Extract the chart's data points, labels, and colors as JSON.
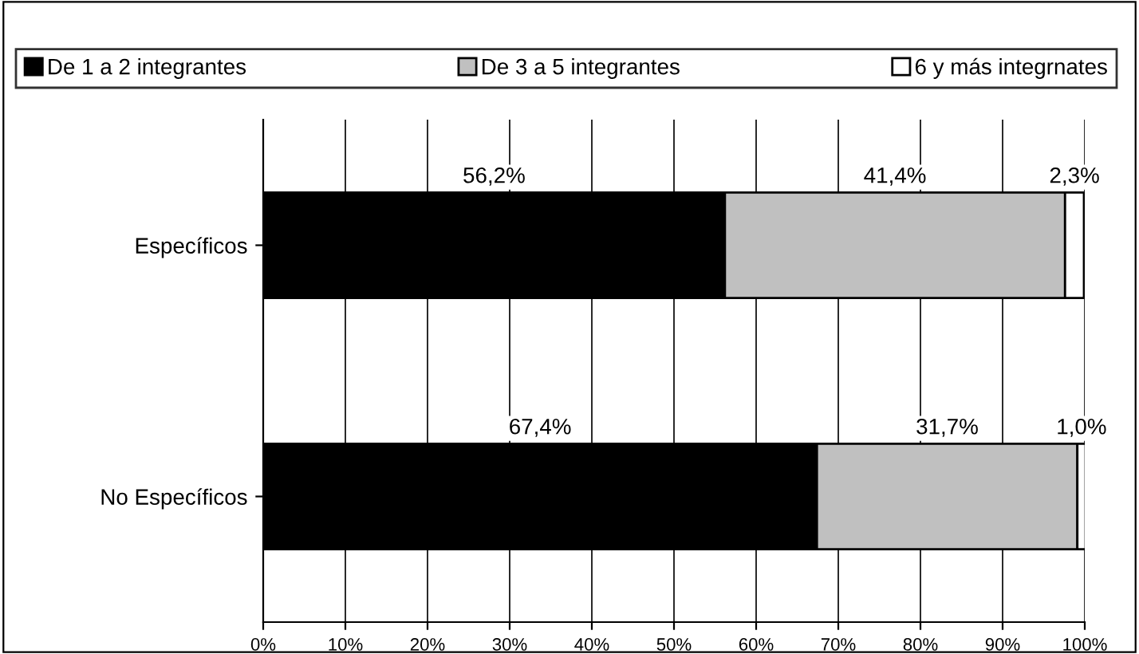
{
  "chart_data": {
    "type": "bar",
    "orientation": "horizontal",
    "stacked": true,
    "categories": [
      "Específicos",
      "No Específicos"
    ],
    "series": [
      {
        "name": "De 1 a 2 integrantes",
        "color": "#000000",
        "values": [
          56.2,
          67.4
        ],
        "value_labels": [
          "56,2%",
          "67,4%"
        ]
      },
      {
        "name": "De 3 a 5 integrantes",
        "color": "#c0c0c0",
        "values": [
          41.4,
          31.7
        ],
        "value_labels": [
          "41,4%",
          "31,7%"
        ]
      },
      {
        "name": "6 y más integrnates",
        "color": "#ffffff",
        "values": [
          2.3,
          1.0
        ],
        "value_labels": [
          "2,3%",
          "1,0%"
        ]
      }
    ],
    "xlim": [
      0,
      100
    ],
    "xticks": [
      {
        "value": 0,
        "label": "0%"
      },
      {
        "value": 10,
        "label": "10%"
      },
      {
        "value": 20,
        "label": "20%"
      },
      {
        "value": 30,
        "label": "30%"
      },
      {
        "value": 40,
        "label": "40%"
      },
      {
        "value": 50,
        "label": "50%"
      },
      {
        "value": 60,
        "label": "60%"
      },
      {
        "value": 70,
        "label": "70%"
      },
      {
        "value": 80,
        "label": "80%"
      },
      {
        "value": 90,
        "label": "90%"
      },
      {
        "value": 100,
        "label": "100%"
      }
    ],
    "grid": "x",
    "legend": "top"
  }
}
